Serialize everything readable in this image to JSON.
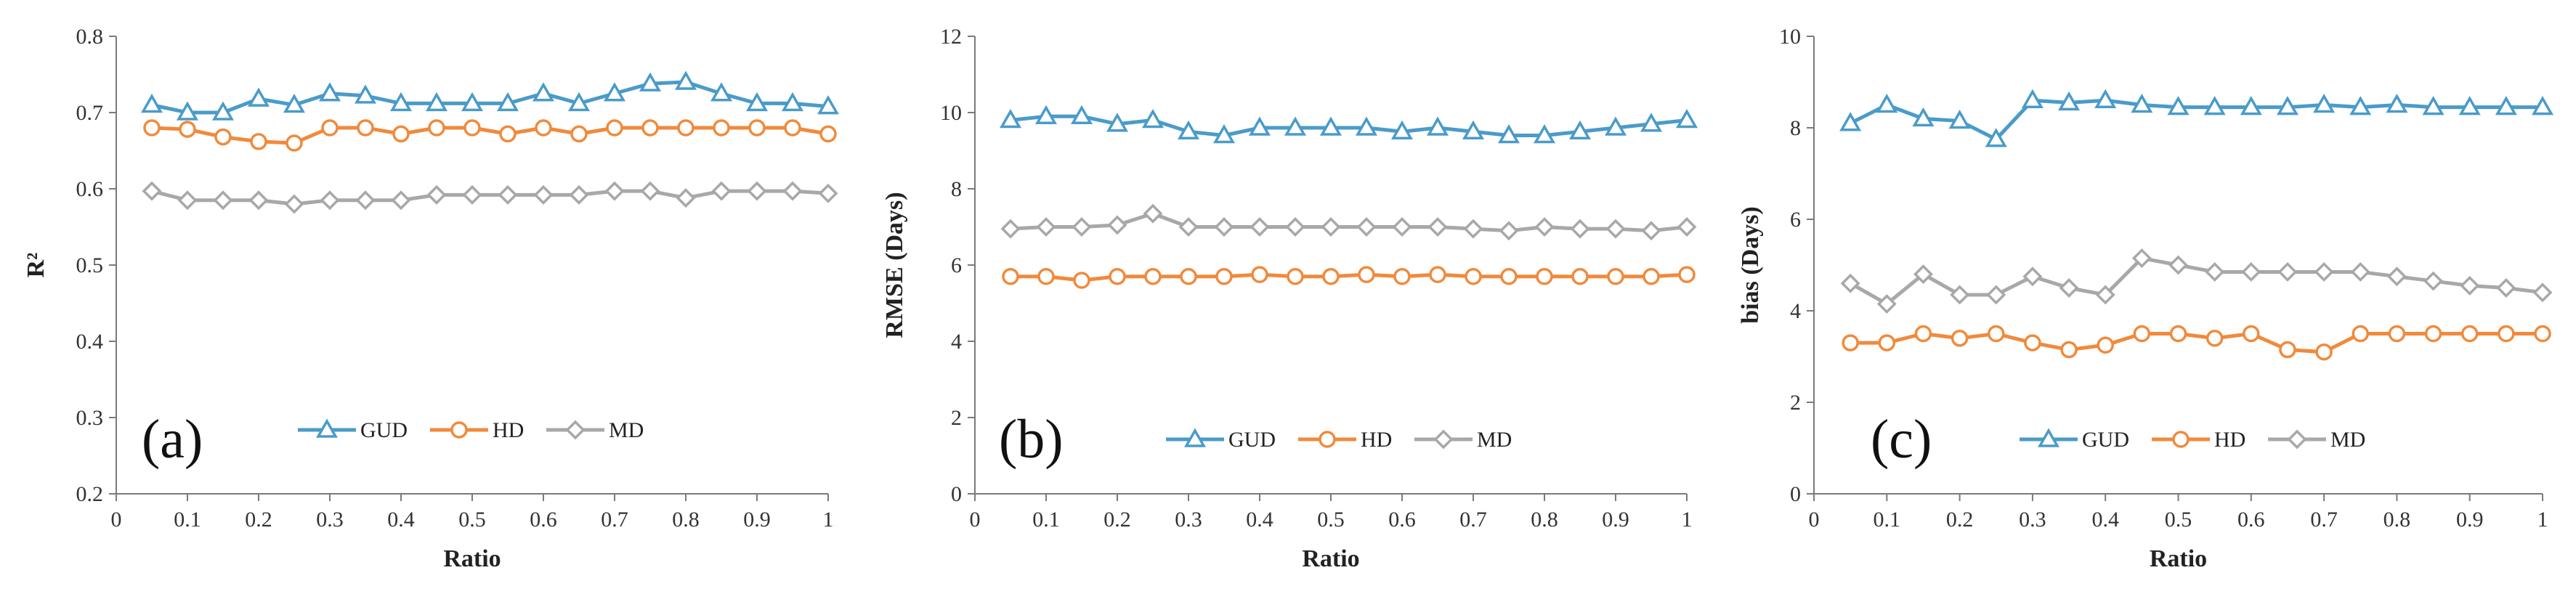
{
  "chart_data": [
    {
      "type": "line",
      "panel_label": "(a)",
      "xlabel": "Ratio",
      "ylabel": "R²",
      "xlim": [
        0,
        1
      ],
      "ylim": [
        0.2,
        0.8
      ],
      "xticks": [
        "0",
        "0.1",
        "0.2",
        "0.3",
        "0.4",
        "0.5",
        "0.6",
        "0.7",
        "0.8",
        "0.9",
        "1"
      ],
      "yticks": [
        "0.2",
        "0.3",
        "0.4",
        "0.5",
        "0.6",
        "0.7",
        "0.8"
      ],
      "x": [
        0.05,
        0.1,
        0.15,
        0.2,
        0.25,
        0.3,
        0.35,
        0.4,
        0.45,
        0.5,
        0.55,
        0.6,
        0.65,
        0.7,
        0.75,
        0.8,
        0.85,
        0.9,
        0.95,
        1.0
      ],
      "legend_position": "bottom-center",
      "series": [
        {
          "name": "GUD",
          "marker": "triangle",
          "color": "#4a9bc9",
          "values": [
            0.71,
            0.7,
            0.7,
            0.718,
            0.71,
            0.725,
            0.722,
            0.712,
            0.712,
            0.712,
            0.712,
            0.725,
            0.712,
            0.725,
            0.738,
            0.74,
            0.725,
            0.712,
            0.712,
            0.708
          ]
        },
        {
          "name": "HD",
          "marker": "circle",
          "color": "#f08a3c",
          "values": [
            0.68,
            0.678,
            0.668,
            0.662,
            0.66,
            0.68,
            0.68,
            0.672,
            0.68,
            0.68,
            0.672,
            0.68,
            0.672,
            0.68,
            0.68,
            0.68,
            0.68,
            0.68,
            0.68,
            0.672
          ]
        },
        {
          "name": "MD",
          "marker": "diamond",
          "color": "#a8a8a8",
          "values": [
            0.597,
            0.585,
            0.585,
            0.585,
            0.58,
            0.585,
            0.585,
            0.585,
            0.592,
            0.592,
            0.592,
            0.592,
            0.592,
            0.597,
            0.597,
            0.588,
            0.597,
            0.597,
            0.597,
            0.594
          ]
        }
      ]
    },
    {
      "type": "line",
      "panel_label": "(b)",
      "xlabel": "Ratio",
      "ylabel": "RMSE (Days)",
      "xlim": [
        0,
        1
      ],
      "ylim": [
        0,
        12
      ],
      "xticks": [
        "0",
        "0.1",
        "0.2",
        "0.3",
        "0.4",
        "0.5",
        "0.6",
        "0.7",
        "0.8",
        "0.9",
        "1"
      ],
      "yticks": [
        "0",
        "2",
        "4",
        "6",
        "8",
        "10",
        "12"
      ],
      "x": [
        0.05,
        0.1,
        0.15,
        0.2,
        0.25,
        0.3,
        0.35,
        0.4,
        0.45,
        0.5,
        0.55,
        0.6,
        0.65,
        0.7,
        0.75,
        0.8,
        0.85,
        0.9,
        0.95,
        1.0
      ],
      "legend_position": "bottom-center",
      "series": [
        {
          "name": "GUD",
          "marker": "triangle",
          "color": "#4a9bc9",
          "values": [
            9.8,
            9.9,
            9.9,
            9.7,
            9.8,
            9.5,
            9.4,
            9.6,
            9.6,
            9.6,
            9.6,
            9.5,
            9.6,
            9.5,
            9.4,
            9.4,
            9.5,
            9.6,
            9.7,
            9.8
          ]
        },
        {
          "name": "HD",
          "marker": "circle",
          "color": "#f08a3c",
          "values": [
            5.7,
            5.7,
            5.6,
            5.7,
            5.7,
            5.7,
            5.7,
            5.75,
            5.7,
            5.7,
            5.75,
            5.7,
            5.75,
            5.7,
            5.7,
            5.7,
            5.7,
            5.7,
            5.7,
            5.75
          ]
        },
        {
          "name": "MD",
          "marker": "diamond",
          "color": "#a8a8a8",
          "values": [
            6.95,
            7.0,
            7.0,
            7.05,
            7.35,
            7.0,
            7.0,
            7.0,
            7.0,
            7.0,
            7.0,
            7.0,
            7.0,
            6.95,
            6.9,
            7.0,
            6.95,
            6.95,
            6.9,
            7.0
          ]
        }
      ]
    },
    {
      "type": "line",
      "panel_label": "(c)",
      "xlabel": "Ratio",
      "ylabel": "bias (Days)",
      "xlim": [
        0,
        1
      ],
      "ylim": [
        0,
        10
      ],
      "xticks": [
        "0",
        "0.1",
        "0.2",
        "0.3",
        "0.4",
        "0.5",
        "0.6",
        "0.7",
        "0.8",
        "0.9",
        "1"
      ],
      "yticks": [
        "0",
        "2",
        "4",
        "6",
        "8",
        "10"
      ],
      "x": [
        0.05,
        0.1,
        0.15,
        0.2,
        0.25,
        0.3,
        0.35,
        0.4,
        0.45,
        0.5,
        0.55,
        0.6,
        0.65,
        0.7,
        0.75,
        0.8,
        0.85,
        0.9,
        0.95,
        1.0
      ],
      "legend_position": "bottom-center",
      "series": [
        {
          "name": "GUD",
          "marker": "triangle",
          "color": "#4a9bc9",
          "values": [
            8.1,
            8.5,
            8.2,
            8.15,
            7.75,
            8.6,
            8.55,
            8.6,
            8.5,
            8.45,
            8.45,
            8.45,
            8.45,
            8.5,
            8.45,
            8.5,
            8.45,
            8.45,
            8.45,
            8.45
          ]
        },
        {
          "name": "HD",
          "marker": "circle",
          "color": "#f08a3c",
          "values": [
            3.3,
            3.3,
            3.5,
            3.4,
            3.5,
            3.3,
            3.15,
            3.25,
            3.5,
            3.5,
            3.4,
            3.5,
            3.15,
            3.1,
            3.5,
            3.5,
            3.5,
            3.5,
            3.5,
            3.5
          ]
        },
        {
          "name": "MD",
          "marker": "diamond",
          "color": "#a8a8a8",
          "values": [
            4.6,
            4.15,
            4.8,
            4.35,
            4.35,
            4.75,
            4.5,
            4.35,
            5.15,
            5.0,
            4.85,
            4.85,
            4.85,
            4.85,
            4.85,
            4.75,
            4.65,
            4.55,
            4.5,
            4.4
          ]
        }
      ]
    }
  ]
}
